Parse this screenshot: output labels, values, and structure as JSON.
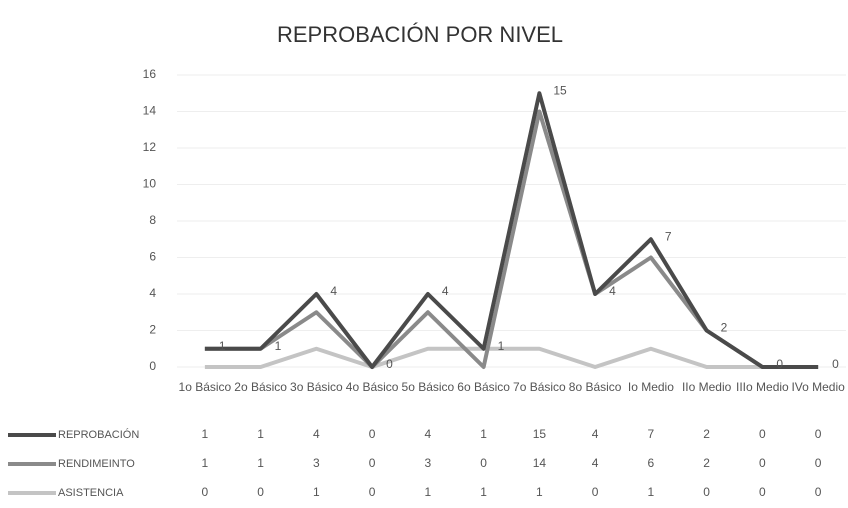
{
  "chart_data": {
    "type": "line",
    "title": "REPROBACIÓN POR NIVEL",
    "categories": [
      "1o Básico",
      "2o Básico",
      "3o Básico",
      "4o Básico",
      "5o Básico",
      "6o Básico",
      "7o Básico",
      "8o Básico",
      "Io Medio",
      "IIo Medio",
      "IIIo Medio",
      "IVo Medio"
    ],
    "series": [
      {
        "name": "REPROBACIÓN",
        "color": "#4a4a4a",
        "values": [
          1,
          1,
          4,
          0,
          4,
          1,
          15,
          4,
          7,
          2,
          0,
          0
        ]
      },
      {
        "name": "RENDIMEINTO",
        "color": "#8a8a8a",
        "values": [
          1,
          1,
          3,
          0,
          3,
          0,
          14,
          4,
          6,
          2,
          0,
          0
        ]
      },
      {
        "name": "ASISTENCIA",
        "color": "#c4c4c4",
        "values": [
          0,
          0,
          1,
          0,
          1,
          1,
          1,
          0,
          1,
          0,
          0,
          0
        ]
      }
    ],
    "ylim": [
      0,
      16
    ],
    "yticks": [
      0,
      2,
      4,
      6,
      8,
      10,
      12,
      14,
      16
    ],
    "grid": true
  }
}
